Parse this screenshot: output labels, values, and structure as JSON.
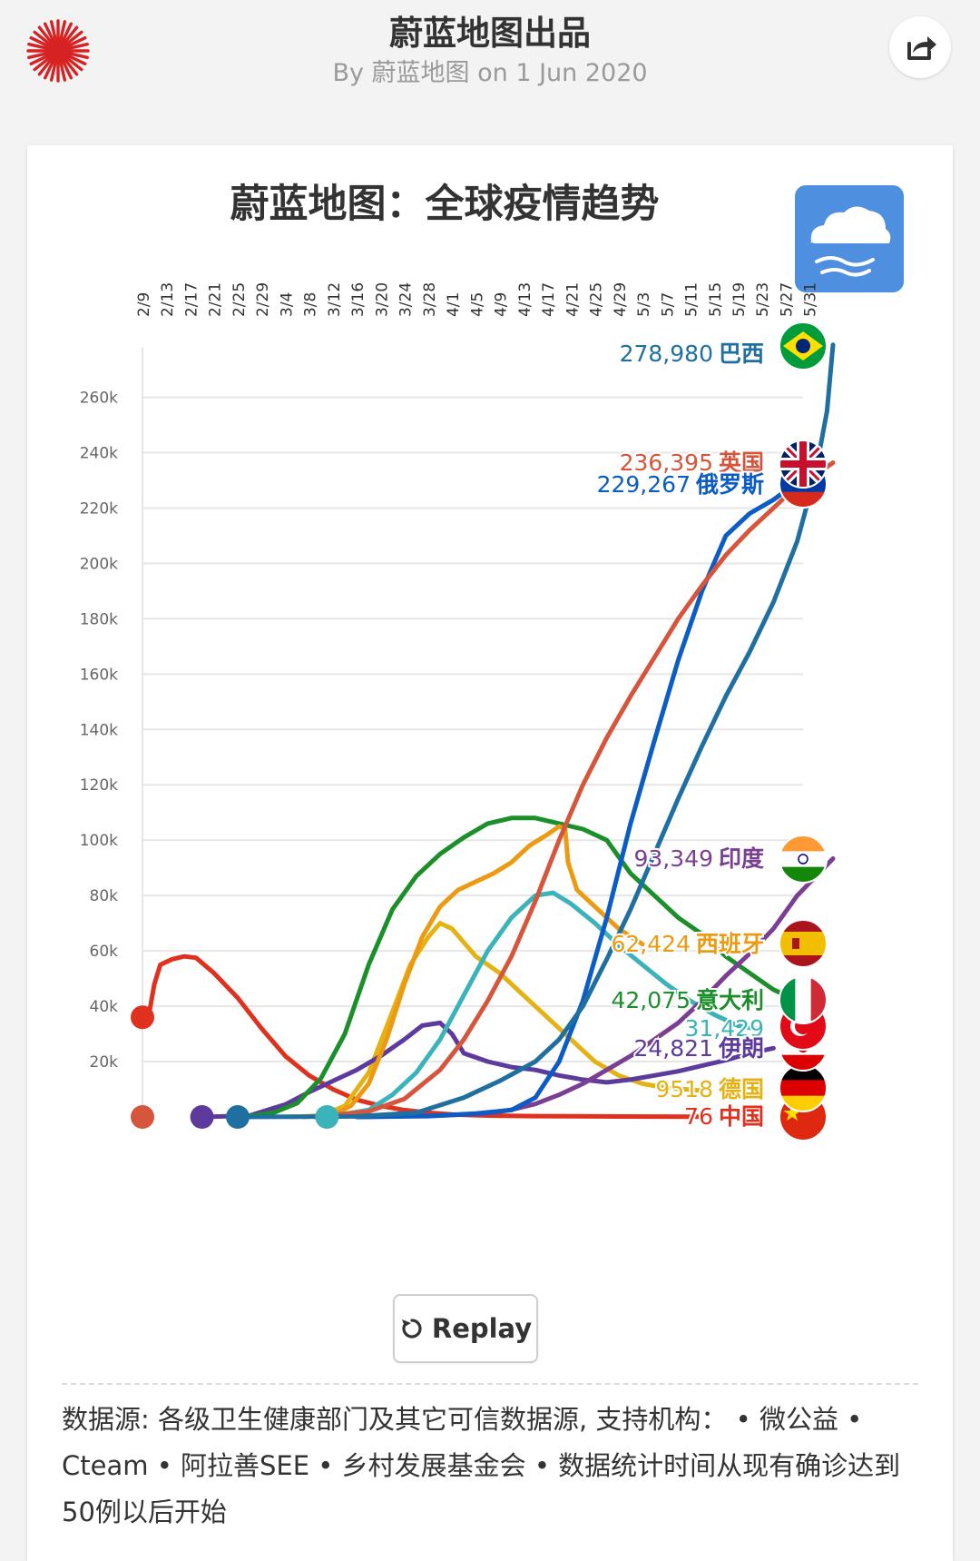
{
  "header": {
    "title": "蔚蓝地图出品",
    "byline": "By 蔚蓝地图 on 1 Jun 2020"
  },
  "chart_title": "蔚蓝地图：全球疫情趋势",
  "replay_label": "Replay",
  "source_note": "数据源: 各级卫生健康部门及其它可信数据源, 支持机构： • 微公益 • Cteam • 阿拉善SEE • 乡村发展基金会 • 数据统计时间从现有确诊达到50例以后开始",
  "colors": {
    "brazil": "#1f6fa0",
    "uk": "#d6553d",
    "russia": "#0b5cc4",
    "india": "#7a3f92",
    "spain": "#ec9a12",
    "italy": "#1a8f2a",
    "turkey": "#3bb3ba",
    "iran": "#5d3a9e",
    "germany": "#e5b214",
    "china": "#e0301e"
  },
  "chart_data": {
    "type": "line",
    "x_ticks": [
      "2/9",
      "2/13",
      "2/17",
      "2/21",
      "2/25",
      "2/29",
      "3/4",
      "3/8",
      "3/12",
      "3/16",
      "3/20",
      "3/24",
      "3/28",
      "4/1",
      "4/5",
      "4/9",
      "4/13",
      "4/17",
      "4/21",
      "4/25",
      "4/29",
      "5/3",
      "5/7",
      "5/11",
      "5/15",
      "5/19",
      "5/23",
      "5/27",
      "5/31"
    ],
    "y_ticks": [
      "20k",
      "40k",
      "60k",
      "80k",
      "100k",
      "120k",
      "140k",
      "160k",
      "180k",
      "200k",
      "220k",
      "240k",
      "260k"
    ],
    "ylim": [
      0,
      260000
    ],
    "grid": true,
    "series": [
      {
        "key": "brazil",
        "name": "巴西",
        "end_value": 278980,
        "end_label": "278,980",
        "points": [
          [
            16,
            0
          ],
          [
            36,
            200
          ],
          [
            46,
            1500
          ],
          [
            54,
            7000
          ],
          [
            60,
            13000
          ],
          [
            66,
            20000
          ],
          [
            70,
            28000
          ],
          [
            74,
            40000
          ],
          [
            78,
            57000
          ],
          [
            82,
            75000
          ],
          [
            86,
            95000
          ],
          [
            90,
            115000
          ],
          [
            94,
            134000
          ],
          [
            98,
            152000
          ],
          [
            102,
            168000
          ],
          [
            106,
            186000
          ],
          [
            110,
            208000
          ],
          [
            113,
            232000
          ],
          [
            115,
            255000
          ],
          [
            116,
            278980
          ]
        ]
      },
      {
        "key": "uk",
        "name": "英国",
        "end_value": 236395,
        "end_label": "236,395",
        "points": [
          [
            29,
            0
          ],
          [
            38,
            2000
          ],
          [
            44,
            6500
          ],
          [
            50,
            17000
          ],
          [
            54,
            28000
          ],
          [
            58,
            42000
          ],
          [
            62,
            58000
          ],
          [
            66,
            78000
          ],
          [
            70,
            100000
          ],
          [
            74,
            120000
          ],
          [
            78,
            137000
          ],
          [
            82,
            152000
          ],
          [
            86,
            166000
          ],
          [
            90,
            180000
          ],
          [
            94,
            192000
          ],
          [
            98,
            203000
          ],
          [
            102,
            212000
          ],
          [
            106,
            220000
          ],
          [
            110,
            228000
          ],
          [
            113,
            232000
          ],
          [
            116,
            236395
          ]
        ]
      },
      {
        "key": "russia",
        "name": "俄罗斯",
        "end_value": 229267,
        "end_label": "229,267",
        "points": [
          [
            36,
            0
          ],
          [
            48,
            300
          ],
          [
            56,
            1200
          ],
          [
            62,
            2500
          ],
          [
            66,
            7000
          ],
          [
            70,
            20000
          ],
          [
            74,
            42000
          ],
          [
            78,
            72000
          ],
          [
            82,
            106000
          ],
          [
            86,
            136000
          ],
          [
            90,
            165000
          ],
          [
            94,
            190000
          ],
          [
            98,
            210000
          ],
          [
            102,
            218000
          ],
          [
            106,
            223000
          ],
          [
            110,
            229267
          ]
        ]
      },
      {
        "key": "india",
        "name": "印度",
        "end_value": 93349,
        "end_label": "93,349",
        "points": [
          [
            36,
            0
          ],
          [
            50,
            500
          ],
          [
            58,
            1300
          ],
          [
            62,
            2600
          ],
          [
            66,
            4700
          ],
          [
            70,
            8000
          ],
          [
            74,
            12000
          ],
          [
            78,
            17000
          ],
          [
            82,
            22000
          ],
          [
            86,
            28000
          ],
          [
            90,
            34000
          ],
          [
            94,
            42000
          ],
          [
            98,
            51000
          ],
          [
            102,
            59000
          ],
          [
            106,
            68000
          ],
          [
            110,
            80000
          ],
          [
            116,
            93349
          ]
        ]
      },
      {
        "key": "spain",
        "name": "西班牙",
        "end_value": 62424,
        "end_label": "62,424",
        "points": [
          [
            27,
            0
          ],
          [
            32,
            700
          ],
          [
            35,
            4000
          ],
          [
            38,
            12000
          ],
          [
            41,
            28000
          ],
          [
            44,
            48000
          ],
          [
            47,
            65000
          ],
          [
            50,
            76000
          ],
          [
            53,
            82000
          ],
          [
            56,
            85000
          ],
          [
            59,
            88000
          ],
          [
            62,
            92000
          ],
          [
            65,
            98000
          ],
          [
            68,
            102000
          ],
          [
            70,
            105000
          ],
          [
            71,
            104000
          ],
          [
            71.5,
            92000
          ],
          [
            73,
            82000
          ],
          [
            76,
            76000
          ],
          [
            80,
            68000
          ],
          [
            84,
            62424
          ]
        ]
      },
      {
        "key": "italy",
        "name": "意大利",
        "end_value": 42075,
        "end_label": "42,075",
        "points": [
          [
            17,
            0
          ],
          [
            22,
            1500
          ],
          [
            26,
            5000
          ],
          [
            30,
            14000
          ],
          [
            34,
            30000
          ],
          [
            38,
            55000
          ],
          [
            42,
            75000
          ],
          [
            46,
            87000
          ],
          [
            50,
            95000
          ],
          [
            54,
            101000
          ],
          [
            58,
            106000
          ],
          [
            62,
            108000
          ],
          [
            66,
            108000
          ],
          [
            70,
            106000
          ],
          [
            74,
            104000
          ],
          [
            78,
            100000
          ],
          [
            80,
            94000
          ],
          [
            82,
            88000
          ],
          [
            86,
            80000
          ],
          [
            90,
            72000
          ],
          [
            94,
            66000
          ],
          [
            98,
            58000
          ],
          [
            102,
            52000
          ],
          [
            106,
            46000
          ],
          [
            110,
            42075
          ]
        ]
      },
      {
        "key": "turkey",
        "name": "",
        "end_value": 31429,
        "end_label": "31,429",
        "points": [
          [
            31,
            0
          ],
          [
            38,
            2500
          ],
          [
            42,
            8000
          ],
          [
            46,
            16000
          ],
          [
            50,
            28000
          ],
          [
            54,
            44000
          ],
          [
            58,
            60000
          ],
          [
            62,
            72000
          ],
          [
            66,
            80000
          ],
          [
            69,
            81000
          ],
          [
            72,
            77000
          ],
          [
            76,
            70000
          ],
          [
            80,
            62000
          ],
          [
            84,
            55000
          ],
          [
            88,
            48000
          ],
          [
            92,
            42000
          ],
          [
            96,
            37000
          ],
          [
            100,
            33000
          ],
          [
            104,
            31429
          ]
        ]
      },
      {
        "key": "iran",
        "name": "伊朗",
        "end_value": 24821,
        "end_label": "24,821",
        "points": [
          [
            10,
            0
          ],
          [
            18,
            500
          ],
          [
            24,
            4500
          ],
          [
            28,
            9000
          ],
          [
            32,
            13000
          ],
          [
            36,
            17000
          ],
          [
            40,
            22000
          ],
          [
            44,
            28000
          ],
          [
            47,
            33000
          ],
          [
            50,
            34000
          ],
          [
            52,
            30000
          ],
          [
            54,
            23000
          ],
          [
            58,
            20000
          ],
          [
            62,
            18000
          ],
          [
            66,
            17000
          ],
          [
            70,
            15000
          ],
          [
            74,
            13500
          ],
          [
            78,
            12500
          ],
          [
            82,
            13500
          ],
          [
            86,
            15000
          ],
          [
            90,
            16500
          ],
          [
            94,
            18500
          ],
          [
            98,
            20500
          ],
          [
            102,
            23000
          ],
          [
            106,
            24821
          ]
        ]
      },
      {
        "key": "germany",
        "name": "德国",
        "end_value": 9518,
        "end_label": "9518",
        "points": [
          [
            25,
            0
          ],
          [
            30,
            500
          ],
          [
            34,
            4000
          ],
          [
            38,
            16000
          ],
          [
            42,
            38000
          ],
          [
            45,
            55000
          ],
          [
            48,
            65000
          ],
          [
            50,
            70000
          ],
          [
            52,
            68000
          ],
          [
            56,
            58000
          ],
          [
            60,
            52000
          ],
          [
            64,
            44000
          ],
          [
            68,
            36000
          ],
          [
            72,
            28000
          ],
          [
            76,
            20000
          ],
          [
            80,
            15000
          ],
          [
            84,
            12000
          ],
          [
            88,
            10500
          ],
          [
            94,
            9518
          ]
        ]
      },
      {
        "key": "china",
        "name": "中国",
        "end_value": 76,
        "end_label": "76",
        "points": [
          [
            0,
            36000
          ],
          [
            1,
            36000
          ],
          [
            2,
            48000
          ],
          [
            3,
            55000
          ],
          [
            5,
            57000
          ],
          [
            7,
            58000
          ],
          [
            9,
            57500
          ],
          [
            12,
            52000
          ],
          [
            16,
            43000
          ],
          [
            20,
            32000
          ],
          [
            24,
            22000
          ],
          [
            28,
            15000
          ],
          [
            32,
            10000
          ],
          [
            36,
            6200
          ],
          [
            40,
            4000
          ],
          [
            44,
            2500
          ],
          [
            48,
            1500
          ],
          [
            52,
            900
          ],
          [
            58,
            500
          ],
          [
            66,
            300
          ],
          [
            80,
            150
          ],
          [
            94,
            76
          ]
        ]
      }
    ]
  }
}
